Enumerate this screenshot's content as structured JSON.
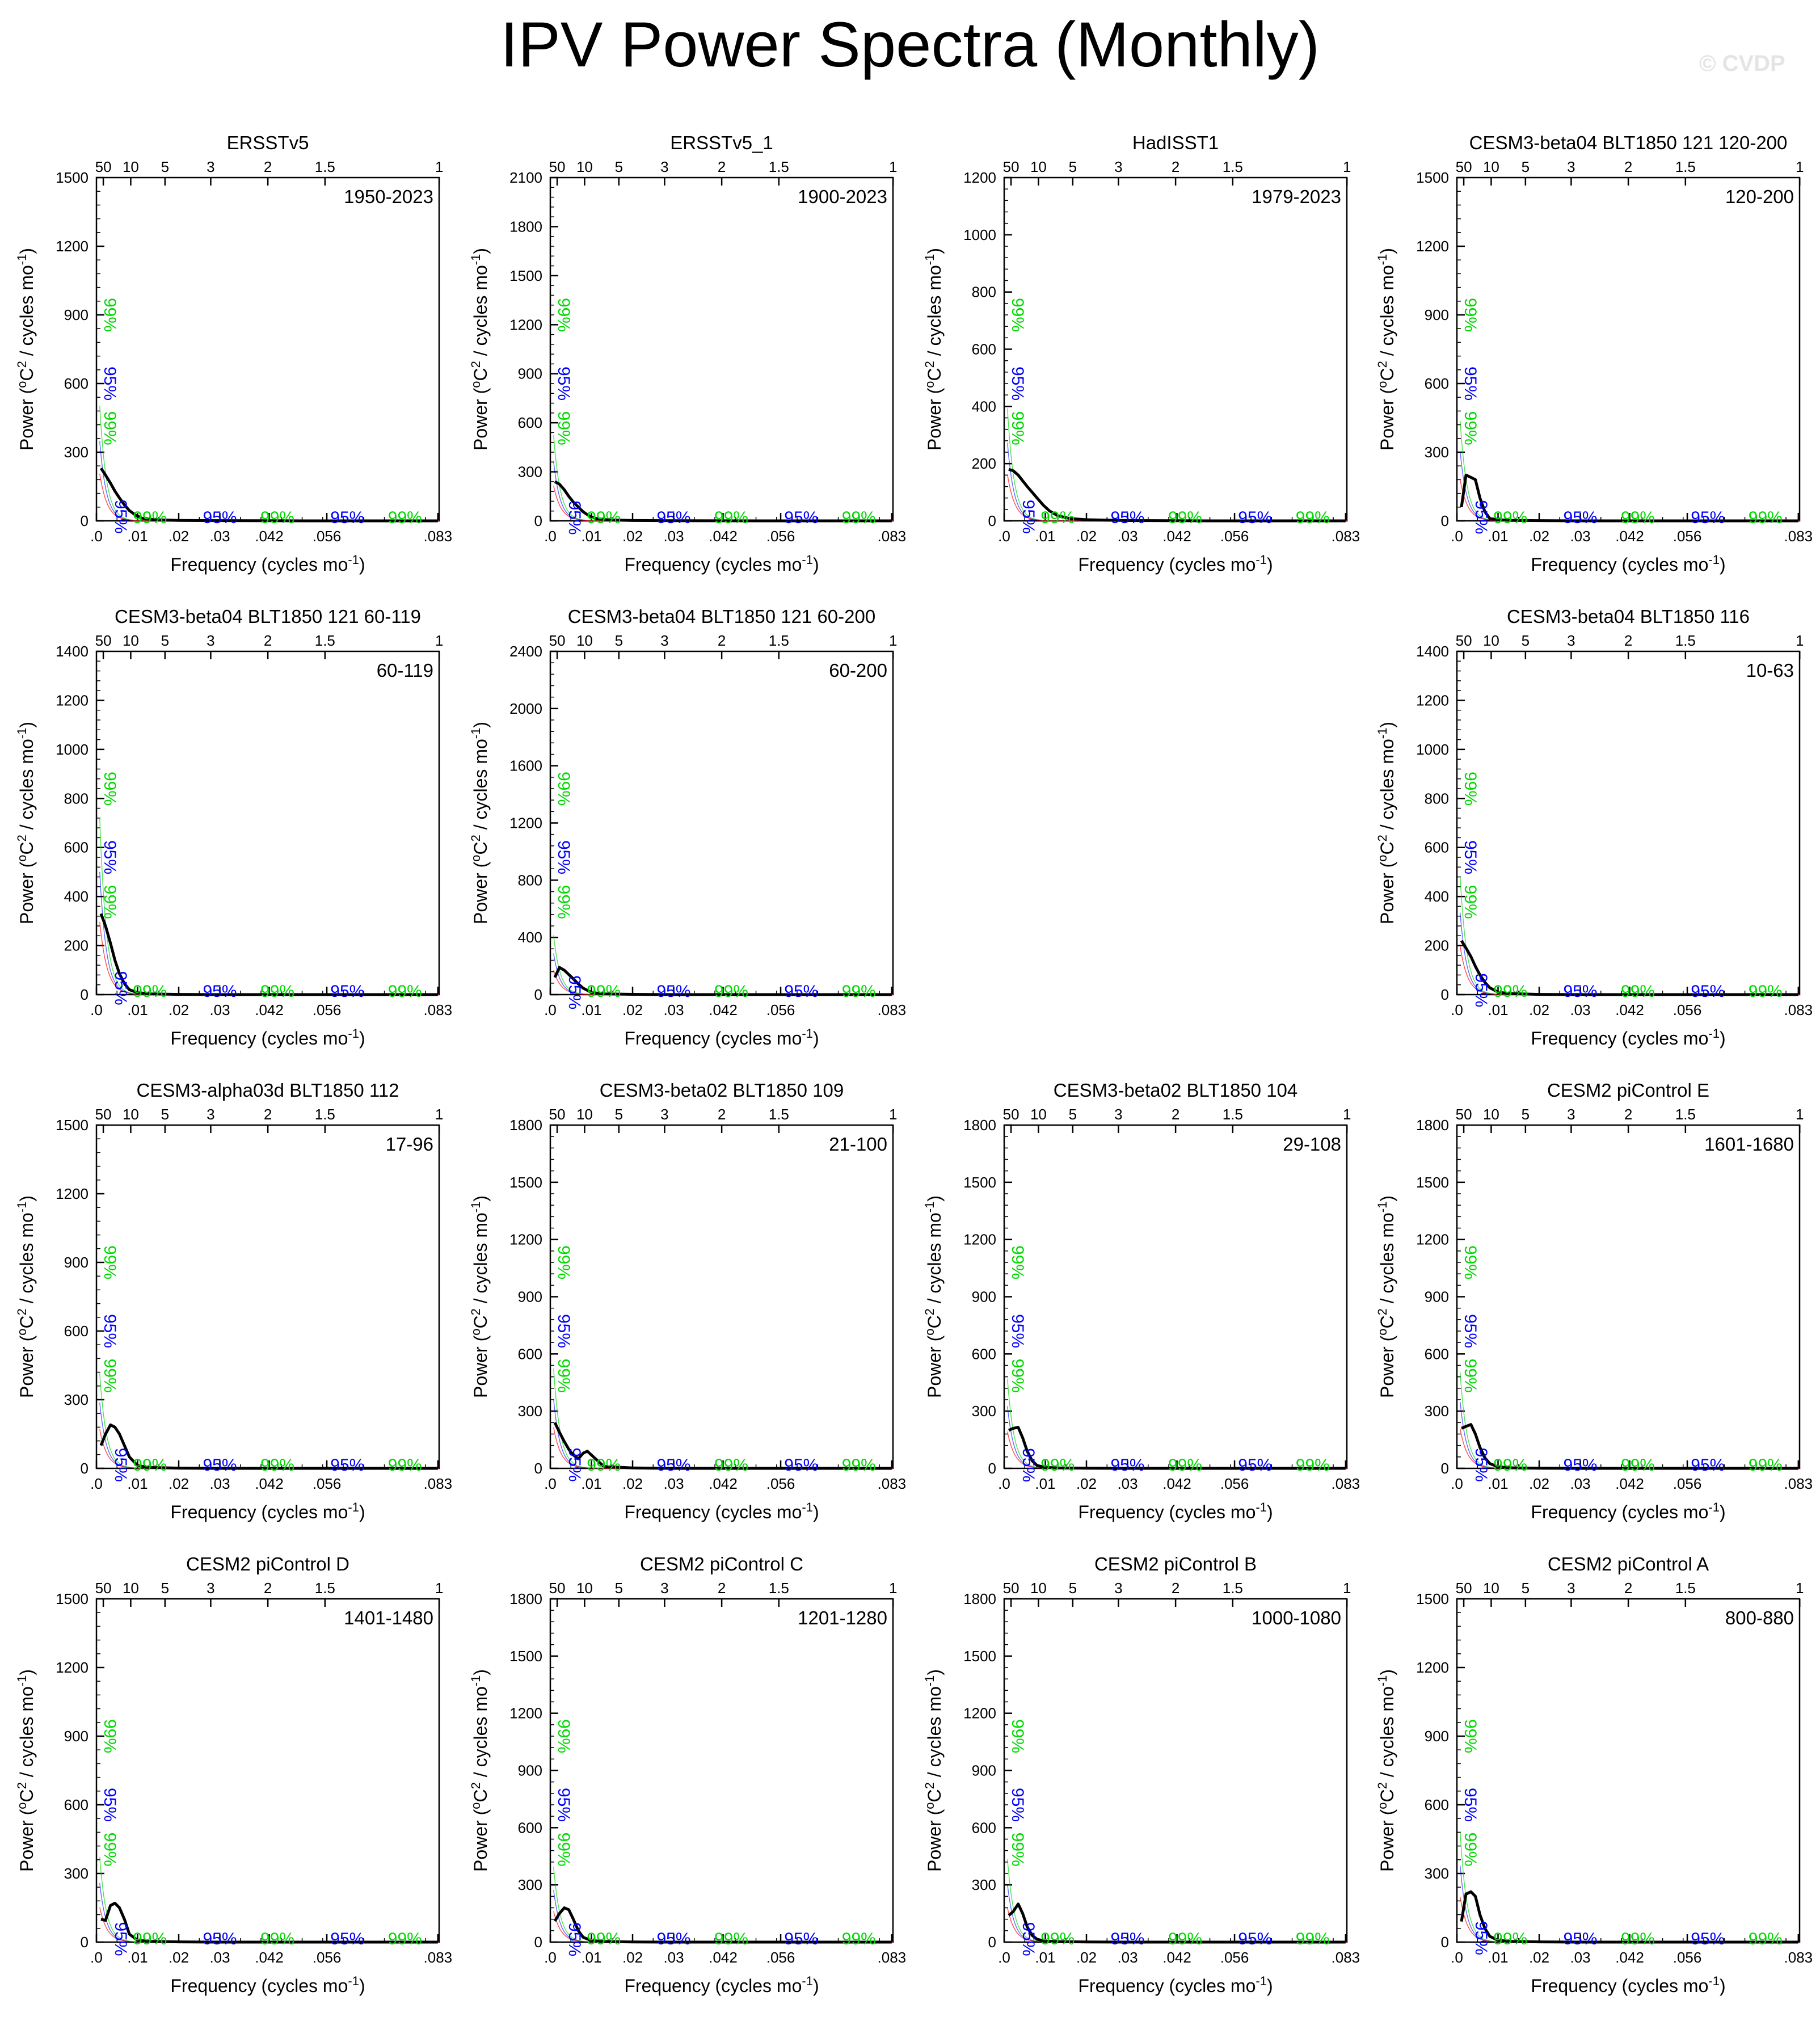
{
  "title": "IPV Power Spectra (Monthly)",
  "watermark": "© CVDP",
  "common": {
    "xlabel": "Frequency (cycles mo",
    "xlabel_sup": "-1",
    "xlabel_end": ")",
    "ylabel": "Power (",
    "ylabel_unit": "C",
    "ylabel_rest": " / cycles mo",
    "ylabel_sup": "-1",
    "ylabel_end": ")",
    "ylabel_degree": "o",
    "ylabel_sq": "2",
    "xlim": [
      0,
      0.0833
    ],
    "x_ticks": [
      0,
      0.01,
      0.02,
      0.03,
      0.042,
      0.056,
      0.083
    ],
    "x_tick_labels": [
      ".0",
      ".01",
      ".02",
      ".03",
      ".042",
      ".056",
      ".083"
    ],
    "period_ticks": [
      50,
      10,
      5,
      3,
      2,
      1.5,
      1
    ],
    "period_tick_labels": [
      "50",
      "10",
      "5",
      "3",
      "2",
      "1.5",
      "1"
    ],
    "colors": {
      "spectrum": "#000000",
      "red_noise": "#ff0000",
      "ci95": "#0000ff",
      "ci99": "#00d900",
      "axis": "#000000"
    },
    "conf_labels": [
      "99%",
      "95%",
      "99%",
      "95%",
      "99%",
      "95%",
      "99%"
    ]
  },
  "chart_data": [
    {
      "type": "line",
      "title": "ERSSTv5",
      "period": "1950-2023",
      "ylim": [
        0,
        1500
      ],
      "y_ticks": [
        0,
        300,
        600,
        900,
        1200,
        1500
      ],
      "x": [
        0.0011,
        0.0022,
        0.0034,
        0.0045,
        0.0056,
        0.0068,
        0.008,
        0.0095,
        0.011,
        0.014,
        0.02,
        0.03,
        0.05,
        0.083
      ],
      "series": [
        {
          "values": [
            230,
            200,
            165,
            130,
            100,
            70,
            45,
            25,
            12,
            5,
            2,
            1,
            0,
            0
          ]
        }
      ]
    },
    {
      "type": "line",
      "title": "ERSSTv5_1",
      "period": "1900-2023",
      "ylim": [
        0,
        2100
      ],
      "y_ticks": [
        0,
        300,
        600,
        900,
        1200,
        1500,
        1800,
        2100
      ],
      "x": [
        0.0011,
        0.0022,
        0.0034,
        0.0045,
        0.0056,
        0.0068,
        0.008,
        0.0095,
        0.011,
        0.014,
        0.02,
        0.03,
        0.05,
        0.083
      ],
      "series": [
        {
          "values": [
            240,
            225,
            190,
            150,
            115,
            85,
            55,
            30,
            15,
            6,
            2,
            1,
            0,
            0
          ]
        }
      ]
    },
    {
      "type": "line",
      "title": "HadISST1",
      "period": "1979-2023",
      "ylim": [
        0,
        1200
      ],
      "y_ticks": [
        0,
        200,
        400,
        600,
        800,
        1000,
        1200
      ],
      "x": [
        0.0011,
        0.0022,
        0.0034,
        0.0045,
        0.0056,
        0.0068,
        0.008,
        0.0095,
        0.011,
        0.013,
        0.016,
        0.02,
        0.03,
        0.05,
        0.083
      ],
      "series": [
        {
          "values": [
            180,
            175,
            160,
            140,
            120,
            100,
            80,
            55,
            35,
            18,
            8,
            4,
            1,
            0,
            0
          ]
        }
      ]
    },
    {
      "type": "line",
      "title": "CESM3-beta04 BLT1850 121 120-200",
      "period": "120-200",
      "ylim": [
        0,
        1500
      ],
      "y_ticks": [
        0,
        300,
        600,
        900,
        1200,
        1500
      ],
      "x": [
        0.0011,
        0.0022,
        0.0034,
        0.0045,
        0.0056,
        0.0068,
        0.008,
        0.01,
        0.013,
        0.02,
        0.03,
        0.05,
        0.083
      ],
      "series": [
        {
          "values": [
            60,
            200,
            190,
            180,
            100,
            40,
            10,
            5,
            2,
            1,
            0,
            0,
            0
          ]
        }
      ]
    },
    {
      "type": "line",
      "title": "CESM3-beta04 BLT1850 121 60-119",
      "period": "60-119",
      "ylim": [
        0,
        1400
      ],
      "y_ticks": [
        0,
        200,
        400,
        600,
        800,
        1000,
        1200,
        1400
      ],
      "x": [
        0.0011,
        0.0022,
        0.0034,
        0.0045,
        0.0056,
        0.0068,
        0.008,
        0.01,
        0.013,
        0.02,
        0.03,
        0.05,
        0.083
      ],
      "series": [
        {
          "values": [
            330,
            280,
            210,
            140,
            85,
            45,
            20,
            8,
            3,
            1,
            0,
            0,
            0
          ]
        }
      ]
    },
    {
      "type": "line",
      "title": "CESM3-beta04 BLT1850 121 60-200",
      "period": "60-200",
      "ylim": [
        0,
        2400
      ],
      "y_ticks": [
        0,
        400,
        800,
        1200,
        1600,
        2000,
        2400
      ],
      "x": [
        0.0011,
        0.0022,
        0.0034,
        0.0045,
        0.0056,
        0.0068,
        0.008,
        0.01,
        0.013,
        0.02,
        0.03,
        0.05,
        0.083
      ],
      "series": [
        {
          "values": [
            120,
            190,
            170,
            140,
            110,
            75,
            45,
            15,
            5,
            2,
            0,
            0,
            0
          ]
        }
      ]
    },
    {
      "type": "line",
      "title": "CESM3-beta04 BLT1850 116",
      "period": "10-63",
      "ylim": [
        0,
        1400
      ],
      "y_ticks": [
        0,
        200,
        400,
        600,
        800,
        1000,
        1200,
        1400
      ],
      "x": [
        0.0011,
        0.0022,
        0.0034,
        0.0045,
        0.0056,
        0.0068,
        0.008,
        0.01,
        0.013,
        0.02,
        0.03,
        0.05,
        0.083
      ],
      "series": [
        {
          "values": [
            220,
            190,
            155,
            115,
            80,
            50,
            28,
            10,
            4,
            1,
            0,
            0,
            0
          ]
        }
      ]
    },
    {
      "type": "line",
      "title": "CESM3-alpha03d BLT1850 112",
      "period": "17-96",
      "ylim": [
        0,
        1500
      ],
      "y_ticks": [
        0,
        300,
        600,
        900,
        1200,
        1500
      ],
      "x": [
        0.0011,
        0.0022,
        0.0034,
        0.0045,
        0.0056,
        0.0068,
        0.008,
        0.01,
        0.013,
        0.02,
        0.03,
        0.05,
        0.083
      ],
      "series": [
        {
          "values": [
            100,
            150,
            190,
            180,
            150,
            100,
            50,
            12,
            4,
            1,
            0,
            0,
            0
          ]
        }
      ]
    },
    {
      "type": "line",
      "title": "CESM3-beta02 BLT1850 109",
      "period": "21-100",
      "ylim": [
        0,
        1800
      ],
      "y_ticks": [
        0,
        300,
        600,
        900,
        1200,
        1500,
        1800
      ],
      "x": [
        0.0011,
        0.0022,
        0.0034,
        0.0045,
        0.0056,
        0.0068,
        0.008,
        0.009,
        0.0105,
        0.013,
        0.02,
        0.03,
        0.05,
        0.083
      ],
      "series": [
        {
          "values": [
            240,
            190,
            140,
            100,
            70,
            50,
            80,
            90,
            60,
            10,
            2,
            0,
            0,
            0
          ]
        }
      ]
    },
    {
      "type": "line",
      "title": "CESM3-beta02 BLT1850 104",
      "period": "29-108",
      "ylim": [
        0,
        1800
      ],
      "y_ticks": [
        0,
        300,
        600,
        900,
        1200,
        1500,
        1800
      ],
      "x": [
        0.0011,
        0.0022,
        0.0034,
        0.0045,
        0.0056,
        0.0068,
        0.008,
        0.01,
        0.013,
        0.02,
        0.03,
        0.05,
        0.083
      ],
      "series": [
        {
          "values": [
            200,
            210,
            215,
            160,
            90,
            40,
            15,
            5,
            2,
            1,
            0,
            0,
            0
          ]
        }
      ]
    },
    {
      "type": "line",
      "title": "CESM2 piControl E",
      "period": "1601-1680",
      "ylim": [
        0,
        1800
      ],
      "y_ticks": [
        0,
        300,
        600,
        900,
        1200,
        1500,
        1800
      ],
      "x": [
        0.0011,
        0.0022,
        0.0034,
        0.0045,
        0.0056,
        0.0068,
        0.008,
        0.01,
        0.013,
        0.02,
        0.03,
        0.05,
        0.083
      ],
      "series": [
        {
          "values": [
            210,
            220,
            230,
            180,
            110,
            55,
            25,
            8,
            3,
            1,
            0,
            0,
            0
          ]
        }
      ]
    },
    {
      "type": "line",
      "title": "CESM2 piControl D",
      "period": "1401-1480",
      "ylim": [
        0,
        1500
      ],
      "y_ticks": [
        0,
        300,
        600,
        900,
        1200,
        1500
      ],
      "x": [
        0.0011,
        0.0022,
        0.0034,
        0.0045,
        0.0056,
        0.0068,
        0.008,
        0.01,
        0.013,
        0.02,
        0.03,
        0.05,
        0.083
      ],
      "series": [
        {
          "values": [
            100,
            95,
            160,
            170,
            150,
            100,
            35,
            8,
            3,
            1,
            0,
            0,
            0
          ]
        }
      ]
    },
    {
      "type": "line",
      "title": "CESM2 piControl C",
      "period": "1201-1280",
      "ylim": [
        0,
        1800
      ],
      "y_ticks": [
        0,
        300,
        600,
        900,
        1200,
        1500,
        1800
      ],
      "x": [
        0.0011,
        0.0022,
        0.0034,
        0.0045,
        0.0056,
        0.0068,
        0.008,
        0.01,
        0.013,
        0.02,
        0.03,
        0.05,
        0.083
      ],
      "series": [
        {
          "values": [
            110,
            150,
            180,
            170,
            120,
            60,
            25,
            8,
            3,
            1,
            0,
            0,
            0
          ]
        }
      ]
    },
    {
      "type": "line",
      "title": "CESM2 piControl B",
      "period": "1000-1080",
      "ylim": [
        0,
        1800
      ],
      "y_ticks": [
        0,
        300,
        600,
        900,
        1200,
        1500,
        1800
      ],
      "x": [
        0.0011,
        0.0022,
        0.0034,
        0.0045,
        0.0056,
        0.0068,
        0.008,
        0.01,
        0.013,
        0.02,
        0.03,
        0.05,
        0.083
      ],
      "series": [
        {
          "values": [
            140,
            160,
            200,
            150,
            80,
            35,
            15,
            5,
            2,
            1,
            0,
            0,
            0
          ]
        }
      ]
    },
    {
      "type": "line",
      "title": "CESM2 piControl A",
      "period": "800-880",
      "ylim": [
        0,
        1500
      ],
      "y_ticks": [
        0,
        300,
        600,
        900,
        1200,
        1500
      ],
      "x": [
        0.0011,
        0.0022,
        0.0034,
        0.0045,
        0.0056,
        0.0068,
        0.008,
        0.01,
        0.013,
        0.02,
        0.03,
        0.05,
        0.083
      ],
      "series": [
        {
          "values": [
            90,
            210,
            220,
            200,
            120,
            60,
            25,
            8,
            3,
            1,
            0,
            0,
            0
          ]
        }
      ]
    }
  ]
}
